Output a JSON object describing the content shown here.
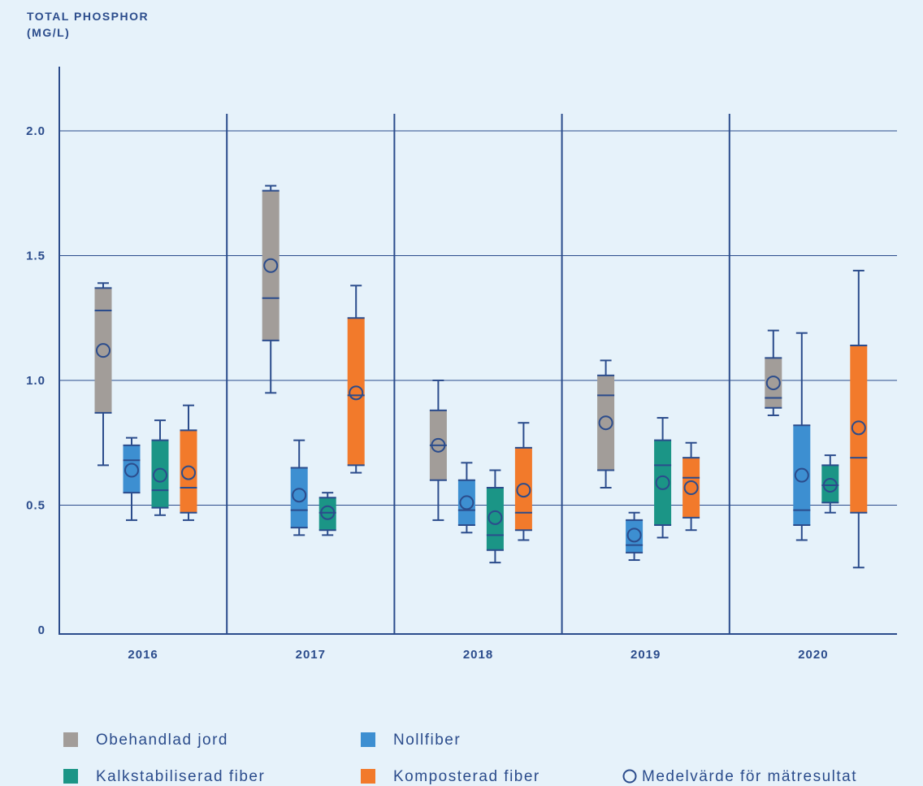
{
  "chart_data": {
    "type": "box",
    "title": "TOTAL PHOSPHOR (MG/L)",
    "categories": [
      "2016",
      "2017",
      "2018",
      "2019",
      "2020"
    ],
    "ylim": [
      0,
      2.2
    ],
    "yticks": [
      0,
      {
        "value": 0.5,
        "label": "0.5"
      },
      {
        "value": 1,
        "label": "1.0"
      },
      {
        "value": 1.5,
        "label": "1.5"
      },
      {
        "value": 2,
        "label": "2.0"
      }
    ],
    "grid": true,
    "mean_legend": "Medelvärde för mätresultat",
    "series": [
      {
        "name": "Obehandlad jord",
        "color": "#a29d99",
        "min": [
          0.66,
          0.95,
          0.44,
          0.57,
          0.86
        ],
        "q1": [
          0.87,
          1.16,
          0.6,
          0.64,
          0.89
        ],
        "median": [
          1.28,
          1.33,
          0.74,
          0.94,
          0.93
        ],
        "q3": [
          1.37,
          1.76,
          0.88,
          1.02,
          1.09
        ],
        "max": [
          1.39,
          1.78,
          1.0,
          1.08,
          1.2
        ],
        "mean": [
          1.12,
          1.46,
          0.74,
          0.83,
          0.99
        ]
      },
      {
        "name": "Nollfiber",
        "color": "#3d8fd1",
        "min": [
          0.44,
          0.38,
          0.39,
          0.28,
          0.36
        ],
        "q1": [
          0.55,
          0.41,
          0.42,
          0.31,
          0.42
        ],
        "median": [
          0.68,
          0.48,
          0.48,
          0.34,
          0.48
        ],
        "q3": [
          0.74,
          0.65,
          0.6,
          0.44,
          0.82
        ],
        "max": [
          0.77,
          0.76,
          0.67,
          0.47,
          1.19
        ],
        "mean": [
          0.64,
          0.54,
          0.51,
          0.38,
          0.62
        ]
      },
      {
        "name": "Kalkstabiliserad fiber",
        "color": "#1b9586",
        "min": [
          0.46,
          0.38,
          0.27,
          0.37,
          0.47
        ],
        "q1": [
          0.49,
          0.4,
          0.32,
          0.42,
          0.51
        ],
        "median": [
          0.56,
          0.47,
          0.38,
          0.66,
          0.58
        ],
        "q3": [
          0.76,
          0.53,
          0.57,
          0.76,
          0.66
        ],
        "max": [
          0.84,
          0.55,
          0.64,
          0.85,
          0.7
        ],
        "mean": [
          0.62,
          0.47,
          0.45,
          0.59,
          0.58
        ]
      },
      {
        "name": "Komposterad fiber",
        "color": "#f27a2b",
        "min": [
          0.44,
          0.63,
          0.36,
          0.4,
          0.25
        ],
        "q1": [
          0.47,
          0.66,
          0.4,
          0.45,
          0.47
        ],
        "median": [
          0.57,
          0.94,
          0.47,
          0.61,
          0.69
        ],
        "q3": [
          0.8,
          1.25,
          0.73,
          0.69,
          1.14
        ],
        "max": [
          0.9,
          1.38,
          0.83,
          0.75,
          1.44
        ],
        "mean": [
          0.63,
          0.95,
          0.56,
          0.57,
          0.81
        ]
      }
    ]
  }
}
